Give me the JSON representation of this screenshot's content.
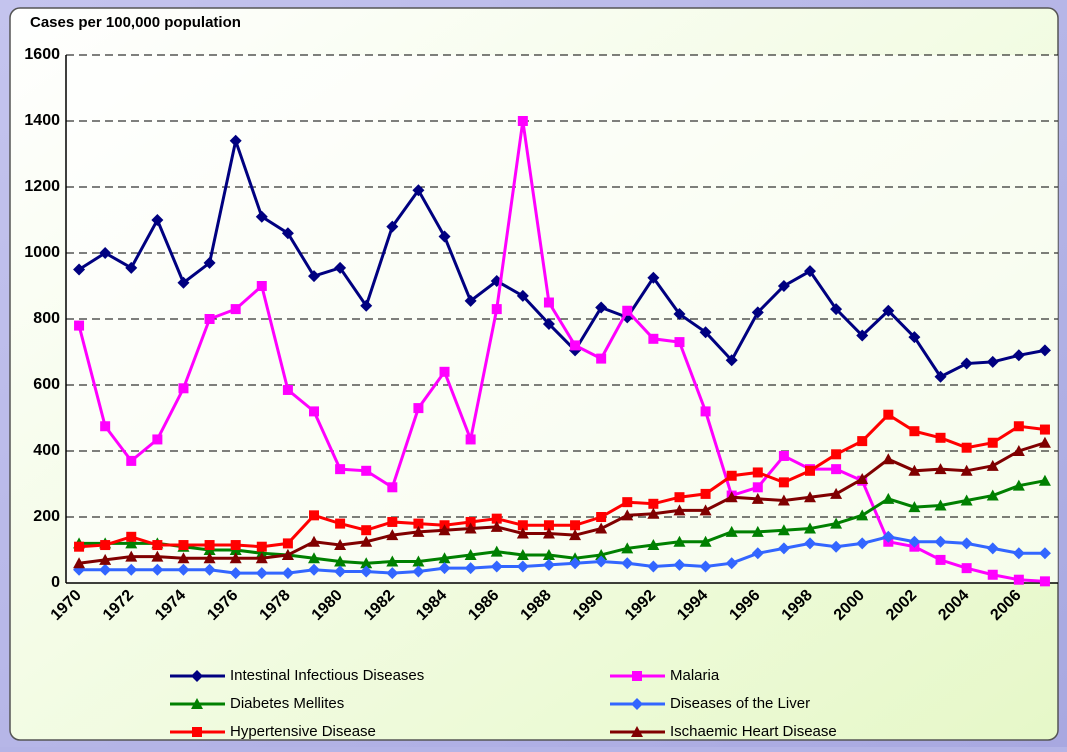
{
  "chart_data": {
    "type": "line",
    "y_axis_title": "Cases per 100,000 population",
    "categories": [
      "1970",
      null,
      "1972",
      null,
      "1974",
      null,
      "1976",
      null,
      "1978",
      null,
      "1980",
      null,
      "1982",
      null,
      "1984",
      null,
      "1986",
      null,
      "1988",
      null,
      "1990",
      null,
      "1992",
      null,
      "1994",
      null,
      "1996",
      null,
      "1998",
      null,
      "2000",
      null,
      "2002",
      null,
      "2004",
      null,
      "2006",
      null
    ],
    "series": [
      {
        "name": "Intestinal Infectious Diseases",
        "color": "#000080",
        "marker": "diamond",
        "values": [
          950,
          1000,
          955,
          1100,
          910,
          970,
          1340,
          1110,
          1060,
          930,
          955,
          840,
          1080,
          1190,
          1050,
          855,
          915,
          870,
          785,
          705,
          835,
          805,
          925,
          815,
          760,
          675,
          820,
          900,
          945,
          830,
          750,
          825,
          745,
          625,
          665,
          670,
          690,
          705
        ]
      },
      {
        "name": "Malaria",
        "color": "#ff00ff",
        "marker": "square",
        "values": [
          780,
          475,
          370,
          435,
          590,
          800,
          830,
          900,
          585,
          520,
          345,
          340,
          290,
          530,
          640,
          435,
          830,
          1400,
          850,
          720,
          680,
          825,
          740,
          730,
          520,
          265,
          290,
          385,
          345,
          345,
          310,
          125,
          110,
          70,
          45,
          25,
          10,
          5
        ]
      },
      {
        "name": "Diabetes Mellites",
        "color": "#008000",
        "marker": "triangle",
        "values": [
          120,
          120,
          120,
          120,
          110,
          100,
          100,
          90,
          85,
          75,
          65,
          60,
          65,
          65,
          75,
          85,
          95,
          85,
          85,
          75,
          85,
          105,
          115,
          125,
          125,
          155,
          155,
          160,
          165,
          180,
          205,
          255,
          230,
          235,
          250,
          265,
          295,
          310
        ]
      },
      {
        "name": "Diseases of the Liver",
        "color": "#3366ff",
        "marker": "diamond",
        "values": [
          40,
          40,
          40,
          40,
          40,
          40,
          30,
          30,
          30,
          40,
          35,
          35,
          30,
          35,
          45,
          45,
          50,
          50,
          55,
          60,
          65,
          60,
          50,
          55,
          50,
          60,
          90,
          105,
          120,
          110,
          120,
          140,
          125,
          125,
          120,
          105,
          90,
          90
        ]
      },
      {
        "name": "Hypertensive Disease",
        "color": "#ff0000",
        "marker": "square",
        "values": [
          110,
          115,
          140,
          115,
          115,
          115,
          115,
          110,
          120,
          205,
          180,
          160,
          185,
          180,
          175,
          185,
          195,
          175,
          175,
          175,
          200,
          245,
          240,
          260,
          270,
          325,
          335,
          305,
          340,
          390,
          430,
          510,
          460,
          440,
          410,
          425,
          475,
          465
        ]
      },
      {
        "name": "Ischaemic Heart Disease",
        "color": "#800000",
        "marker": "triangle",
        "values": [
          60,
          70,
          80,
          80,
          75,
          75,
          75,
          75,
          85,
          125,
          115,
          125,
          145,
          155,
          160,
          165,
          170,
          150,
          150,
          145,
          165,
          205,
          210,
          220,
          220,
          260,
          255,
          250,
          260,
          270,
          315,
          375,
          340,
          345,
          340,
          355,
          400,
          425
        ]
      }
    ],
    "ylim": [
      0,
      1600
    ],
    "yticks": [
      0,
      200,
      400,
      600,
      800,
      1000,
      1200,
      1400,
      1600
    ],
    "grid": true
  }
}
